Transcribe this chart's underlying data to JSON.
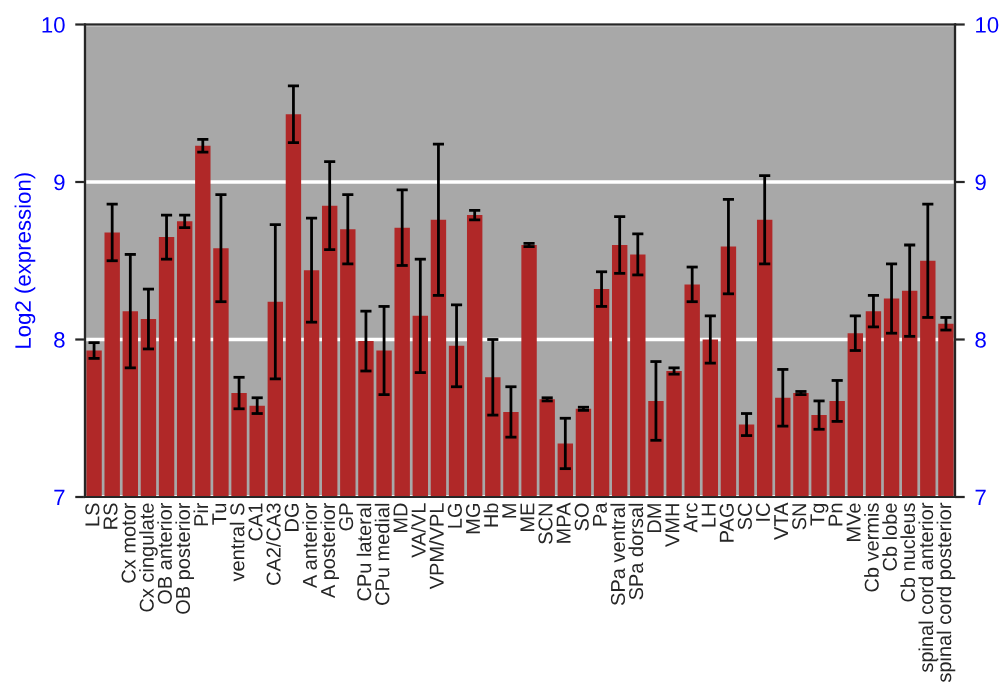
{
  "chart_data": {
    "type": "bar",
    "ylabel": "Log2 (expression)",
    "categories": [
      "LS",
      "RS",
      "Cx motor",
      "Cx cingulate",
      "OB anterior",
      "OB posterior",
      "Pir",
      "Tu",
      "ventral S",
      "CA1",
      "CA2/CA3",
      "DG",
      "A anterior",
      "A posterior",
      "GP",
      "CPu lateral",
      "CPu medial",
      "MD",
      "VA/VL",
      "VPM/VPL",
      "LG",
      "MG",
      "Hb",
      "M",
      "ME",
      "SCN",
      "MPA",
      "SO",
      "Pa",
      "SPa ventral",
      "SPa dorsal",
      "DM",
      "VMH",
      "Arc",
      "LH",
      "PAG",
      "SC",
      "IC",
      "VTA",
      "SN",
      "Tg",
      "Pn",
      "MVe",
      "Cb vermis",
      "Cb lobe",
      "Cb nucleus",
      "spinal cord anterior",
      "spinal cord posterior"
    ],
    "values": [
      7.93,
      8.68,
      8.18,
      8.13,
      8.65,
      8.75,
      9.23,
      8.58,
      7.66,
      7.58,
      8.24,
      9.43,
      8.44,
      8.85,
      8.7,
      7.99,
      7.93,
      8.71,
      8.15,
      8.76,
      7.96,
      8.79,
      7.76,
      7.54,
      8.6,
      7.62,
      7.34,
      7.56,
      8.32,
      8.6,
      8.54,
      7.61,
      7.8,
      8.35,
      8.0,
      8.59,
      7.46,
      8.76,
      7.63,
      7.66,
      7.52,
      7.61,
      8.04,
      8.18,
      8.26,
      8.31,
      8.5,
      8.1
    ],
    "errors": [
      0.05,
      0.18,
      0.36,
      0.19,
      0.14,
      0.04,
      0.04,
      0.34,
      0.1,
      0.05,
      0.49,
      0.18,
      0.33,
      0.28,
      0.22,
      0.19,
      0.28,
      0.24,
      0.36,
      0.48,
      0.26,
      0.03,
      0.24,
      0.16,
      0.01,
      0.01,
      0.16,
      0.01,
      0.11,
      0.18,
      0.13,
      0.25,
      0.02,
      0.11,
      0.15,
      0.3,
      0.07,
      0.28,
      0.18,
      0.01,
      0.09,
      0.13,
      0.11,
      0.1,
      0.22,
      0.29,
      0.36,
      0.04
    ],
    "color": "#b02828",
    "ylim": [
      7,
      10
    ],
    "yticks": [
      7,
      8,
      9,
      10
    ],
    "y2lim": [
      7,
      10
    ],
    "y2ticks": [
      7,
      8,
      9,
      10
    ],
    "grid": "y"
  }
}
